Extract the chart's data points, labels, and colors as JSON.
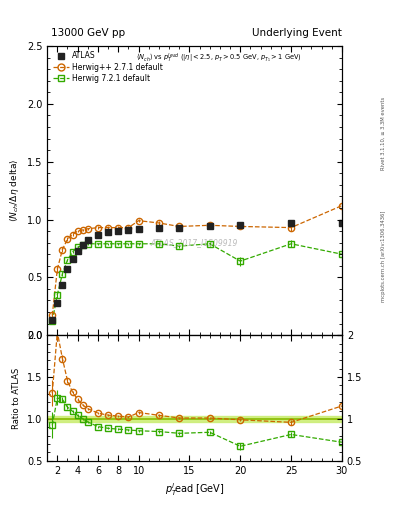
{
  "title_left": "13000 GeV pp",
  "title_right": "Underlying Event",
  "annotation": "ATLAS_2017_I1509919",
  "side_text_top": "Rivet 3.1.10, ≥ 3.3M events",
  "side_text_bottom": "mcplots.cern.ch [arXiv:1306.3436]",
  "ylim_main": [
    0,
    2.5
  ],
  "ylim_ratio": [
    0.5,
    2.0
  ],
  "xlim": [
    1,
    30
  ],
  "atlas_x": [
    1.5,
    2.0,
    2.5,
    3.0,
    3.5,
    4.0,
    4.5,
    5.0,
    6.0,
    7.0,
    8.0,
    9.0,
    10.0,
    12.0,
    14.0,
    17.0,
    20.0,
    25.0,
    30.0
  ],
  "atlas_y": [
    0.13,
    0.28,
    0.43,
    0.57,
    0.66,
    0.73,
    0.78,
    0.82,
    0.87,
    0.89,
    0.9,
    0.91,
    0.92,
    0.93,
    0.93,
    0.94,
    0.95,
    0.97,
    0.97
  ],
  "atlas_yerr": [
    0.008,
    0.008,
    0.008,
    0.008,
    0.008,
    0.008,
    0.008,
    0.008,
    0.008,
    0.008,
    0.008,
    0.008,
    0.008,
    0.01,
    0.01,
    0.01,
    0.01,
    0.02,
    0.03
  ],
  "herwig_x": [
    1.5,
    2.0,
    2.5,
    3.0,
    3.5,
    4.0,
    4.5,
    5.0,
    6.0,
    7.0,
    8.0,
    9.0,
    10.0,
    12.0,
    14.0,
    17.0,
    20.0,
    25.0,
    30.0
  ],
  "herwig_y": [
    0.17,
    0.57,
    0.74,
    0.83,
    0.87,
    0.9,
    0.91,
    0.92,
    0.93,
    0.93,
    0.93,
    0.93,
    0.99,
    0.97,
    0.94,
    0.95,
    0.94,
    0.93,
    1.12
  ],
  "herwig_yerr": [
    0.02,
    0.03,
    0.02,
    0.015,
    0.01,
    0.01,
    0.01,
    0.01,
    0.01,
    0.01,
    0.01,
    0.01,
    0.015,
    0.015,
    0.015,
    0.015,
    0.015,
    0.03,
    0.07
  ],
  "herwig7_x": [
    1.5,
    2.0,
    2.5,
    3.0,
    3.5,
    4.0,
    4.5,
    5.0,
    6.0,
    7.0,
    8.0,
    9.0,
    10.0,
    12.0,
    14.0,
    17.0,
    20.0,
    25.0,
    30.0
  ],
  "herwig7_y": [
    0.12,
    0.35,
    0.53,
    0.65,
    0.72,
    0.76,
    0.78,
    0.79,
    0.79,
    0.79,
    0.79,
    0.79,
    0.79,
    0.79,
    0.77,
    0.79,
    0.64,
    0.79,
    0.7
  ],
  "herwig7_yerr": [
    0.02,
    0.025,
    0.015,
    0.012,
    0.01,
    0.01,
    0.01,
    0.01,
    0.01,
    0.01,
    0.01,
    0.01,
    0.01,
    0.015,
    0.015,
    0.015,
    0.04,
    0.03,
    0.05
  ],
  "atlas_color": "#222222",
  "herwig_color": "#cc6600",
  "herwig7_color": "#33aa00",
  "legend_labels": [
    "ATLAS",
    "Herwig++ 2.7.1 default",
    "Herwig 7.2.1 default"
  ]
}
